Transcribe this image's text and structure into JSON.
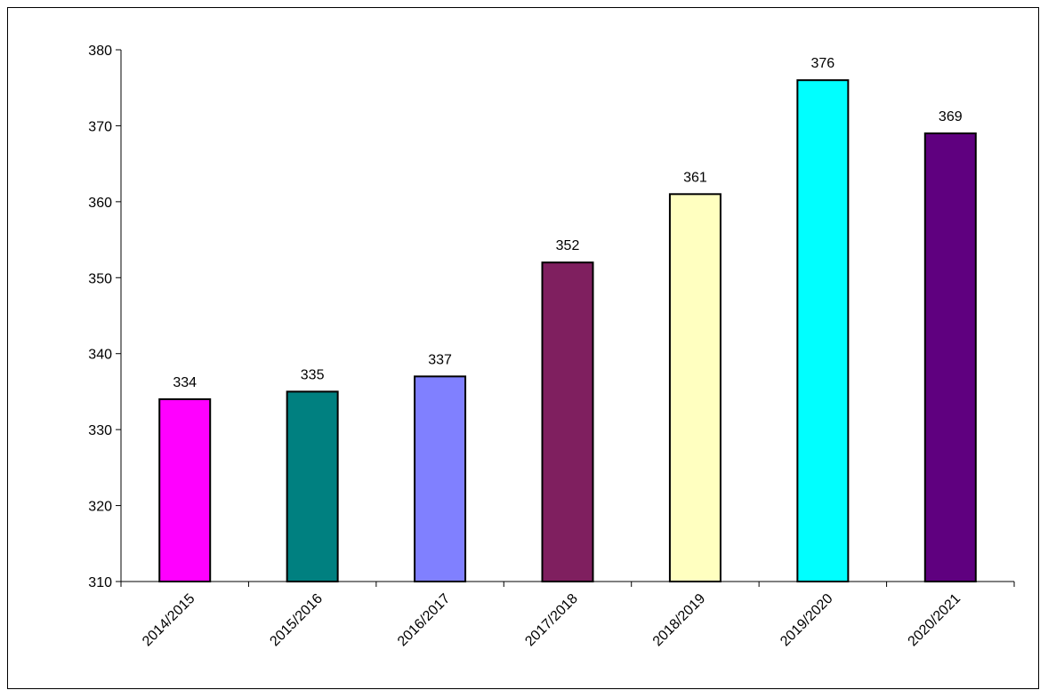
{
  "chart_data": {
    "type": "bar",
    "categories": [
      "2014/2015",
      "2015/2016",
      "2016/2017",
      "2017/2018",
      "2018/2019",
      "2019/2020",
      "2020/2021"
    ],
    "values": [
      334,
      335,
      337,
      352,
      361,
      376,
      369
    ],
    "bar_colors": [
      "#ff00ff",
      "#008080",
      "#8080ff",
      "#7f1f5f",
      "#ffffc0",
      "#00ffff",
      "#5f007f"
    ],
    "ylim": [
      310,
      380
    ],
    "yticks": [
      310,
      320,
      330,
      340,
      350,
      360,
      370,
      380
    ],
    "grid": false,
    "data_labels": true,
    "title": "",
    "xlabel": "",
    "ylabel": ""
  }
}
